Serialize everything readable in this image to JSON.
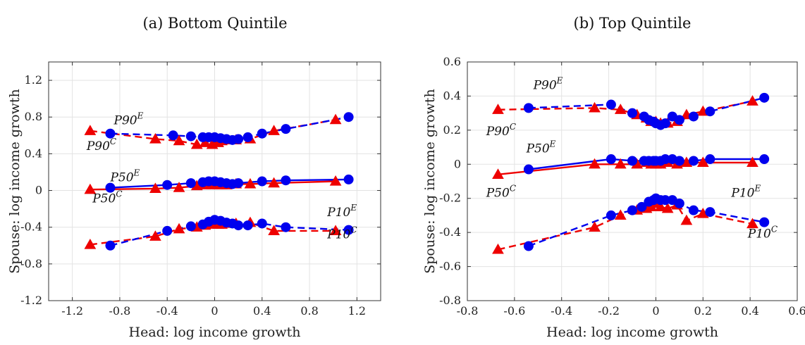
{
  "chart_data": [
    {
      "type": "line",
      "title": "(a) Bottom Quintile",
      "xlabel": "Head: log income growth",
      "ylabel": "Spouse: log income growth",
      "xlim": [
        -1.4,
        1.4
      ],
      "ylim": [
        -1.2,
        1.4
      ],
      "xticks": [
        -1.2,
        -0.8,
        -0.4,
        0,
        0.4,
        0.8,
        1.2
      ],
      "xtick_labels": [
        "-1.2",
        "-0.8",
        "-0.4",
        "0",
        "0.4",
        "0.8",
        "1.2"
      ],
      "yticks": [
        -1.2,
        -0.8,
        -0.4,
        0,
        0.4,
        0.8,
        1.2
      ],
      "ytick_labels": [
        "-1.2",
        "-0.8",
        "-0.4",
        "0",
        "0.4",
        "0.8",
        "1.2"
      ],
      "grid": true,
      "series": [
        {
          "color": "#0000ee",
          "marker": "circle",
          "style": "dashed",
          "x": [
            -0.88,
            -0.35,
            -0.2,
            -0.1,
            -0.05,
            0,
            0.05,
            0.1,
            0.15,
            0.2,
            0.28,
            0.4,
            0.6,
            1.13
          ],
          "y": [
            0.62,
            0.6,
            0.59,
            0.58,
            0.58,
            0.58,
            0.57,
            0.56,
            0.55,
            0.56,
            0.58,
            0.62,
            0.67,
            0.8
          ]
        },
        {
          "color": "#ee0000",
          "marker": "triangle",
          "style": "dashed",
          "x": [
            -1.05,
            -0.5,
            -0.3,
            -0.15,
            -0.08,
            -0.02,
            0,
            0.03,
            0.06,
            0.1,
            0.18,
            0.3,
            0.5,
            1.02
          ],
          "y": [
            0.65,
            0.56,
            0.54,
            0.5,
            0.52,
            0.5,
            0.54,
            0.52,
            0.54,
            0.55,
            0.55,
            0.56,
            0.65,
            0.77
          ]
        },
        {
          "color": "#0000ee",
          "marker": "circle",
          "style": "solid",
          "x": [
            -0.88,
            -0.4,
            -0.2,
            -0.1,
            -0.05,
            0,
            0.05,
            0.1,
            0.15,
            0.2,
            0.4,
            0.6,
            1.13
          ],
          "y": [
            0.03,
            0.06,
            0.08,
            0.09,
            0.1,
            0.1,
            0.09,
            0.08,
            0.07,
            0.08,
            0.1,
            0.11,
            0.12
          ]
        },
        {
          "color": "#ee0000",
          "marker": "triangle",
          "style": "solid",
          "x": [
            -1.05,
            -0.5,
            -0.3,
            -0.15,
            -0.08,
            -0.02,
            0,
            0.03,
            0.06,
            0.1,
            0.18,
            0.3,
            0.5,
            1.02
          ],
          "y": [
            0.01,
            0.02,
            0.03,
            0.05,
            0.06,
            0.06,
            0.07,
            0.06,
            0.06,
            0.06,
            0.07,
            0.07,
            0.08,
            0.1
          ]
        },
        {
          "color": "#0000ee",
          "marker": "circle",
          "style": "dashed",
          "x": [
            -0.88,
            -0.4,
            -0.2,
            -0.1,
            -0.05,
            0,
            0.05,
            0.1,
            0.15,
            0.2,
            0.28,
            0.4,
            0.6,
            1.13
          ],
          "y": [
            -0.6,
            -0.44,
            -0.39,
            -0.37,
            -0.34,
            -0.32,
            -0.33,
            -0.35,
            -0.36,
            -0.38,
            -0.38,
            -0.36,
            -0.4,
            -0.43
          ]
        },
        {
          "color": "#ee0000",
          "marker": "triangle",
          "style": "dashed",
          "x": [
            -1.05,
            -0.5,
            -0.3,
            -0.15,
            -0.08,
            -0.02,
            0,
            0.03,
            0.06,
            0.1,
            0.18,
            0.3,
            0.5,
            1.02
          ],
          "y": [
            -0.59,
            -0.5,
            -0.42,
            -0.4,
            -0.38,
            -0.37,
            -0.35,
            -0.37,
            -0.37,
            -0.36,
            -0.36,
            -0.35,
            -0.44,
            -0.44
          ]
        }
      ],
      "annotations": [
        {
          "text": "P90",
          "sup": "E",
          "x": -0.85,
          "y": 0.72
        },
        {
          "text": "P90",
          "sup": "C",
          "x": -1.08,
          "y": 0.44
        },
        {
          "text": "P50",
          "sup": "E",
          "x": -0.88,
          "y": 0.1
        },
        {
          "text": "P50",
          "sup": "C",
          "x": -1.03,
          "y": -0.13
        },
        {
          "text": "P10",
          "sup": "E",
          "x": 0.95,
          "y": -0.28
        },
        {
          "text": "P10",
          "sup": "C",
          "x": 0.95,
          "y": -0.52
        }
      ]
    },
    {
      "type": "line",
      "title": "(b) Top Quintile",
      "xlabel": "Head: log income growth",
      "ylabel": "Spouse: log income growth",
      "xlim": [
        -0.8,
        0.6
      ],
      "ylim": [
        -0.8,
        0.6
      ],
      "xticks": [
        -0.8,
        -0.6,
        -0.4,
        -0.2,
        0,
        0.2,
        0.4,
        0.6
      ],
      "xtick_labels": [
        "-0.8",
        "-0.6",
        "-0.4",
        "-0.2",
        "0",
        "0.2",
        "0.4",
        "0.6"
      ],
      "yticks": [
        -0.8,
        -0.6,
        -0.4,
        -0.2,
        0,
        0.2,
        0.4,
        0.6
      ],
      "ytick_labels": [
        "-0.8",
        "-0.6",
        "-0.4",
        "-0.2",
        "0",
        "0.2",
        "0.4",
        "0.6"
      ],
      "grid": true,
      "series": [
        {
          "color": "#0000ee",
          "marker": "circle",
          "style": "dashed",
          "x": [
            -0.54,
            -0.19,
            -0.1,
            -0.05,
            -0.03,
            -0.01,
            0,
            0.02,
            0.04,
            0.07,
            0.1,
            0.16,
            0.23,
            0.46
          ],
          "y": [
            0.33,
            0.35,
            0.3,
            0.28,
            0.26,
            0.25,
            0.24,
            0.23,
            0.24,
            0.28,
            0.26,
            0.28,
            0.31,
            0.39
          ]
        },
        {
          "color": "#ee0000",
          "marker": "triangle",
          "style": "dashed",
          "x": [
            -0.67,
            -0.26,
            -0.15,
            -0.08,
            -0.04,
            -0.02,
            0,
            0.02,
            0.05,
            0.09,
            0.13,
            0.2,
            0.41
          ],
          "y": [
            0.32,
            0.33,
            0.32,
            0.29,
            0.27,
            0.25,
            0.25,
            0.24,
            0.24,
            0.25,
            0.29,
            0.31,
            0.37
          ]
        },
        {
          "color": "#0000ee",
          "marker": "circle",
          "style": "solid",
          "x": [
            -0.54,
            -0.19,
            -0.1,
            -0.05,
            -0.03,
            -0.01,
            0,
            0.02,
            0.04,
            0.07,
            0.1,
            0.16,
            0.23,
            0.46
          ],
          "y": [
            -0.03,
            0.03,
            0.02,
            0.02,
            0.02,
            0.02,
            0.02,
            0.02,
            0.03,
            0.03,
            0.02,
            0.02,
            0.03,
            0.03
          ]
        },
        {
          "color": "#ee0000",
          "marker": "triangle",
          "style": "solid",
          "x": [
            -0.67,
            -0.26,
            -0.15,
            -0.08,
            -0.04,
            -0.02,
            0,
            0.02,
            0.05,
            0.09,
            0.13,
            0.2,
            0.41
          ],
          "y": [
            -0.06,
            0.0,
            0.0,
            0.0,
            0.01,
            0.0,
            0.0,
            0.0,
            0.01,
            0.0,
            0.01,
            0.01,
            0.01
          ]
        },
        {
          "color": "#0000ee",
          "marker": "circle",
          "style": "dashed",
          "x": [
            -0.54,
            -0.19,
            -0.1,
            -0.06,
            -0.03,
            -0.01,
            0,
            0.02,
            0.04,
            0.07,
            0.1,
            0.16,
            0.23,
            0.46
          ],
          "y": [
            -0.48,
            -0.3,
            -0.27,
            -0.25,
            -0.22,
            -0.21,
            -0.2,
            -0.21,
            -0.21,
            -0.21,
            -0.23,
            -0.27,
            -0.28,
            -0.34
          ]
        },
        {
          "color": "#ee0000",
          "marker": "triangle",
          "style": "dashed",
          "x": [
            -0.67,
            -0.26,
            -0.15,
            -0.08,
            -0.04,
            -0.02,
            0,
            0.02,
            0.05,
            0.09,
            0.13,
            0.2,
            0.41
          ],
          "y": [
            -0.5,
            -0.37,
            -0.3,
            -0.27,
            -0.26,
            -0.25,
            -0.23,
            -0.25,
            -0.26,
            -0.24,
            -0.33,
            -0.29,
            -0.35
          ]
        }
      ],
      "annotations": [
        {
          "text": "P90",
          "sup": "E",
          "x": -0.52,
          "y": 0.44
        },
        {
          "text": "P90",
          "sup": "C",
          "x": -0.72,
          "y": 0.17
        },
        {
          "text": "P50",
          "sup": "E",
          "x": -0.55,
          "y": 0.07
        },
        {
          "text": "P50",
          "sup": "C",
          "x": -0.72,
          "y": -0.19
        },
        {
          "text": "P10",
          "sup": "E",
          "x": 0.32,
          "y": -0.19
        },
        {
          "text": "P10",
          "sup": "C",
          "x": 0.39,
          "y": -0.43
        }
      ]
    }
  ]
}
